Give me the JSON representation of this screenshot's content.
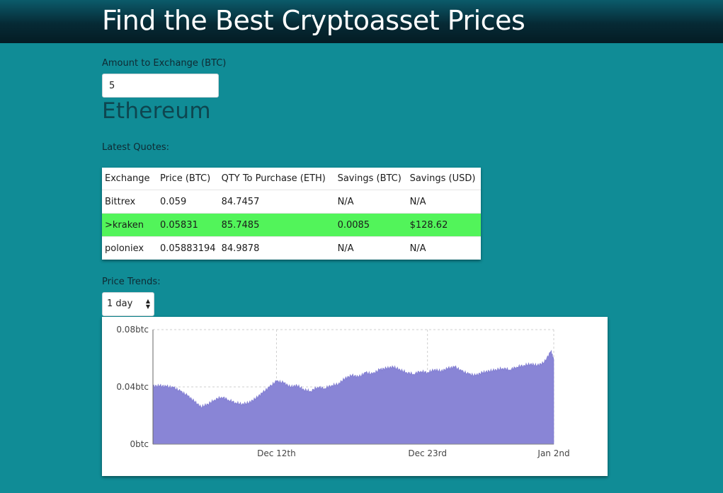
{
  "header": {
    "title": "Find the Best Cryptoasset Prices"
  },
  "amount": {
    "label": "Amount to Exchange (BTC)",
    "value": "5"
  },
  "coin": {
    "name": "Ethereum"
  },
  "quotes": {
    "label": "Latest Quotes:",
    "columns": [
      "Exchange",
      "Price (BTC)",
      "QTY To Purchase (ETH)",
      "Savings (BTC)",
      "Savings (USD)"
    ],
    "rows": [
      {
        "exchange": "Bittrex",
        "price": "0.059",
        "qty": "84.7457",
        "savings_btc": "N/A",
        "savings_usd": "N/A",
        "best": false
      },
      {
        "exchange": ">kraken",
        "price": "0.05831",
        "qty": "85.7485",
        "savings_btc": "0.0085",
        "savings_usd": "$128.62",
        "best": true
      },
      {
        "exchange": "poloniex",
        "price": "0.05883194",
        "qty": "84.9878",
        "savings_btc": "N/A",
        "savings_usd": "N/A",
        "best": false
      }
    ],
    "best_color": "#52f45a"
  },
  "trends": {
    "label": "Price Trends:",
    "range_selected": "1 day",
    "range_icon": "updown-arrows-icon"
  },
  "colors": {
    "background": "#108c96",
    "header_dark": "#041c24",
    "area_fill": "#8985d6"
  },
  "chart_data": {
    "type": "area",
    "title": "",
    "xlabel": "",
    "ylabel": "",
    "ylim": [
      0,
      0.08
    ],
    "y_ticks": [
      {
        "label": "0.08btc",
        "value": 0.08
      },
      {
        "label": "0.04btc",
        "value": 0.04
      },
      {
        "label": "0btc",
        "value": 0
      }
    ],
    "x_ticks": [
      {
        "label": "Dec 12th",
        "x": 9
      },
      {
        "label": "Dec 23rd",
        "x": 20
      },
      {
        "label": "Jan 2nd",
        "x": 29.2
      }
    ],
    "grid": true,
    "legend": "none",
    "series": [
      {
        "x": [
          0,
          0.5,
          1,
          1.5,
          2,
          2.5,
          3,
          3.5,
          4,
          4.5,
          5,
          5.5,
          6,
          6.5,
          7,
          7.5,
          8,
          8.5,
          9,
          9.5,
          10,
          10.5,
          11,
          11.5,
          12,
          12.5,
          13,
          13.5,
          14,
          14.5,
          15,
          15.5,
          16,
          16.5,
          17,
          17.5,
          18,
          18.5,
          19,
          19.5,
          20,
          20.5,
          21,
          21.5,
          22,
          22.5,
          23,
          23.5,
          24,
          24.5,
          25,
          25.5,
          26,
          26.5,
          27,
          27.5,
          28,
          28.5,
          29,
          29.2
        ],
        "values": [
          0.0405,
          0.0408,
          0.0403,
          0.0395,
          0.037,
          0.034,
          0.03,
          0.026,
          0.028,
          0.031,
          0.033,
          0.031,
          0.029,
          0.028,
          0.029,
          0.032,
          0.036,
          0.04,
          0.044,
          0.043,
          0.04,
          0.041,
          0.038,
          0.037,
          0.04,
          0.039,
          0.041,
          0.042,
          0.046,
          0.048,
          0.047,
          0.05,
          0.049,
          0.052,
          0.053,
          0.054,
          0.052,
          0.05,
          0.049,
          0.051,
          0.05,
          0.052,
          0.051,
          0.053,
          0.054,
          0.051,
          0.049,
          0.048,
          0.05,
          0.051,
          0.052,
          0.053,
          0.052,
          0.054,
          0.055,
          0.056,
          0.055,
          0.057,
          0.065,
          0.059
        ]
      }
    ]
  }
}
